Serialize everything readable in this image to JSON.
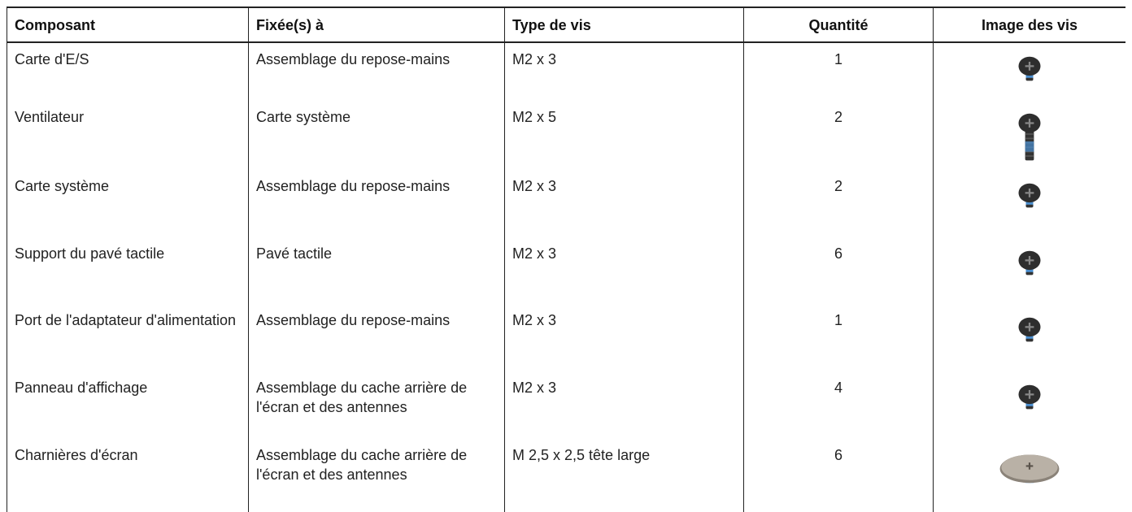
{
  "table": {
    "header": [
      "Composant",
      "Fixée(s) à",
      "Type de vis",
      "Quantité",
      "Image des vis"
    ],
    "rows": [
      [
        "Carte d'E/S",
        "Assemblage du repose-mains",
        "M2 x 3",
        "1"
      ],
      [
        "Ventilateur",
        "Carte système",
        "M2 x 5",
        "2"
      ],
      [
        "Carte système",
        "Assemblage du repose-mains",
        "M2 x 3",
        "2"
      ],
      [
        "Support du pavé tactile",
        "Pavé tactile",
        "M2 x 3",
        "6"
      ],
      [
        "Port de l'adaptateur d'alimentation",
        "Assemblage du repose-mains",
        "M2 x 3",
        "1"
      ],
      [
        "Panneau d'affichage",
        "Assemblage du cache arrière de l'écran et des antennes",
        "M2 x 3",
        "4"
      ],
      [
        "Charnières d'écran",
        "Assemblage du cache arrière de l'écran et des antennes",
        "M 2,5 x 2,5 tête large",
        "6"
      ]
    ]
  }
}
